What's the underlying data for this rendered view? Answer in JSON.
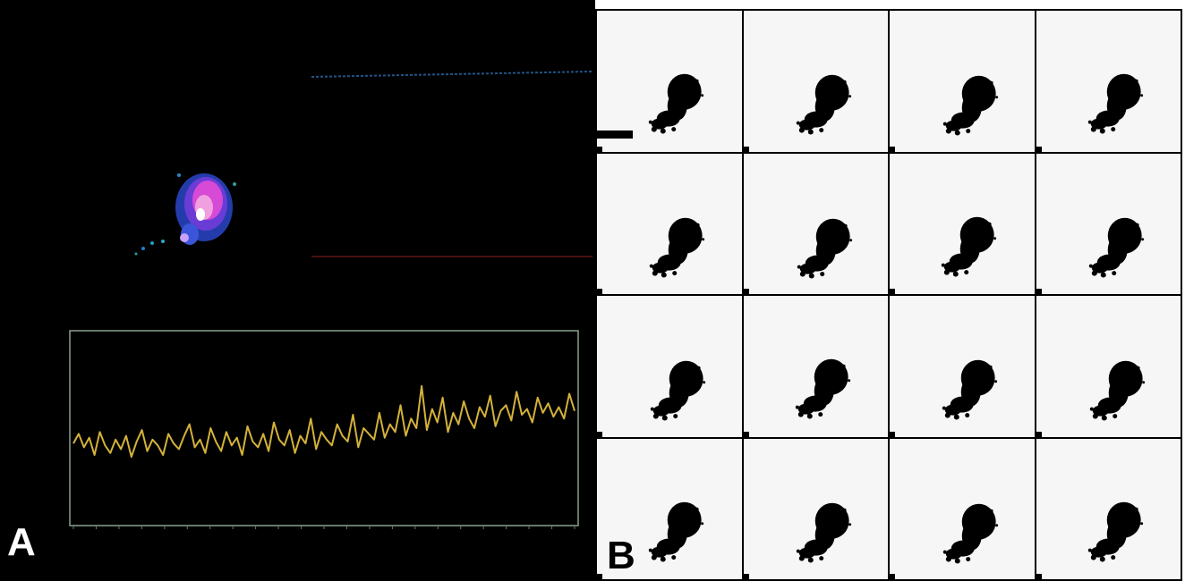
{
  "figure": {
    "panel_a_label": "A",
    "panel_b_label": "B",
    "colors": {
      "panel_a_background": "#000000",
      "trace_color": "#d4b23a",
      "plot_frame": "#8aa08a",
      "cell_heatmap": [
        "#2a46c9",
        "#6a3cd6",
        "#d64ad6",
        "#f0a0e0",
        "#ffffff"
      ],
      "panel_b_background": "#f6f6f6",
      "cell_silhouette": "#000000"
    }
  },
  "panel_a": {
    "tiny_labels": [
      "",
      "",
      "",
      ""
    ],
    "trace_series": [
      0.42,
      0.47,
      0.4,
      0.45,
      0.36,
      0.48,
      0.41,
      0.37,
      0.44,
      0.39,
      0.46,
      0.35,
      0.43,
      0.49,
      0.38,
      0.44,
      0.41,
      0.36,
      0.47,
      0.42,
      0.39,
      0.46,
      0.52,
      0.4,
      0.44,
      0.37,
      0.5,
      0.43,
      0.38,
      0.48,
      0.41,
      0.45,
      0.36,
      0.51,
      0.43,
      0.4,
      0.47,
      0.38,
      0.53,
      0.44,
      0.41,
      0.49,
      0.37,
      0.46,
      0.42,
      0.55,
      0.39,
      0.48,
      0.44,
      0.41,
      0.52,
      0.46,
      0.43,
      0.57,
      0.4,
      0.5,
      0.47,
      0.44,
      0.58,
      0.45,
      0.52,
      0.48,
      0.62,
      0.46,
      0.55,
      0.5,
      0.72,
      0.49,
      0.6,
      0.53,
      0.66,
      0.48,
      0.58,
      0.52,
      0.64,
      0.55,
      0.5,
      0.61,
      0.56,
      0.67,
      0.51,
      0.59,
      0.62,
      0.54,
      0.69,
      0.57,
      0.6,
      0.53,
      0.66,
      0.58,
      0.63,
      0.56,
      0.61,
      0.55,
      0.68,
      0.59
    ]
  },
  "panel_b": {
    "grid_rows": 4,
    "grid_cols": 4
  }
}
